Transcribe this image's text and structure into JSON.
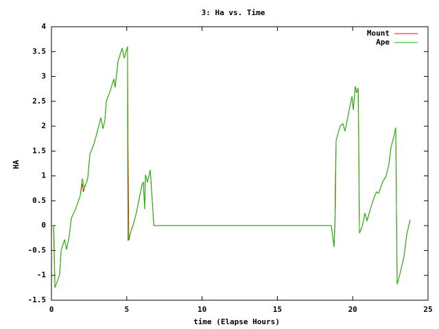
{
  "chart_data": {
    "type": "line",
    "title": "3: Ha vs. Time",
    "x_label": "time (Elapse Hours)",
    "y_label": "HA",
    "xlim": [
      0,
      25
    ],
    "xticks": [
      0,
      5,
      10,
      15,
      20,
      25
    ],
    "ylim": [
      -1.5,
      4
    ],
    "yticks": [
      -1.5,
      -1,
      -0.5,
      0,
      0.5,
      1,
      1.5,
      2,
      2.5,
      3,
      3.5,
      4
    ],
    "grid": false,
    "legend": "top-right",
    "series": [
      {
        "name": "Mount",
        "color": "#ff0000",
        "x": [
          0,
          0.14,
          0.23,
          0.55,
          0.64,
          0.87,
          1.0,
          1.18,
          1.32,
          1.6,
          1.91,
          2.05,
          2.12,
          2.19,
          2.41,
          2.55,
          2.82,
          3.14,
          3.28,
          3.42,
          3.55,
          3.64,
          3.87,
          4.14,
          4.23,
          4.42,
          4.69,
          4.83,
          5.05,
          5.08,
          5.08,
          5.12,
          5.14,
          5.24,
          5.46,
          5.65,
          5.83,
          6.01,
          6.1,
          6.19,
          6.24,
          6.38,
          6.56,
          6.8,
          18.58,
          18.76,
          18.82,
          18.84,
          18.9,
          19.17,
          19.35,
          19.49,
          19.72,
          19.95,
          20.04,
          20.17,
          20.26,
          20.36,
          20.38,
          20.39,
          20.42,
          20.43,
          20.45,
          20.63,
          20.81,
          20.95,
          21.17,
          21.4,
          21.58,
          21.72,
          21.99,
          22.22,
          22.4,
          22.54,
          22.72,
          22.86,
          22.95,
          23.13,
          23.4,
          23.59,
          23.82
        ],
        "values": [
          0,
          0,
          -1.25,
          -0.98,
          -0.5,
          -0.28,
          -0.48,
          -0.22,
          0.15,
          0.33,
          0.6,
          0.85,
          0.68,
          0.75,
          0.95,
          1.43,
          1.64,
          2.0,
          2.17,
          1.95,
          2.12,
          2.5,
          2.68,
          2.95,
          2.78,
          3.3,
          3.57,
          3.37,
          3.6,
          2.1,
          1.65,
          0.38,
          -0.3,
          -0.15,
          0.05,
          0.27,
          0.55,
          0.82,
          0.88,
          0.33,
          1.02,
          0.88,
          1.12,
          0,
          0,
          -0.43,
          0,
          0.7,
          1.72,
          2.0,
          2.05,
          1.9,
          2.25,
          2.6,
          2.33,
          2.8,
          2.67,
          2.77,
          2.2,
          2.0,
          1.15,
          0.45,
          -0.15,
          -0.02,
          0.25,
          0.1,
          0.33,
          0.55,
          0.68,
          0.65,
          0.88,
          1.0,
          1.23,
          1.57,
          1.78,
          1.97,
          -1.18,
          -0.98,
          -0.63,
          -0.17,
          0.12
        ]
      },
      {
        "name": "Ape",
        "color": "#00c000",
        "x": [
          0,
          0.14,
          0.18,
          0.23,
          0.55,
          0.64,
          0.87,
          1.0,
          1.18,
          1.32,
          1.6,
          1.91,
          2.05,
          2.19,
          2.41,
          2.55,
          2.82,
          3.14,
          3.28,
          3.42,
          3.55,
          3.64,
          3.87,
          4.14,
          4.23,
          4.42,
          4.69,
          4.83,
          5.05,
          5.07,
          5.24,
          5.46,
          5.65,
          5.83,
          6.01,
          6.1,
          6.19,
          6.24,
          6.38,
          6.56,
          6.8,
          18.58,
          18.76,
          18.85,
          18.9,
          19.17,
          19.35,
          19.49,
          19.72,
          19.95,
          20.04,
          20.17,
          20.26,
          20.36,
          20.45,
          20.63,
          20.81,
          20.95,
          21.17,
          21.4,
          21.58,
          21.72,
          21.99,
          22.22,
          22.4,
          22.54,
          22.72,
          22.86,
          22.95,
          23.13,
          23.4,
          23.59,
          23.82
        ],
        "values": [
          0,
          0,
          -0.3,
          -1.25,
          -0.98,
          -0.5,
          -0.28,
          -0.48,
          -0.22,
          0.15,
          0.33,
          0.6,
          0.95,
          0.75,
          0.95,
          1.43,
          1.64,
          2.0,
          2.17,
          1.95,
          2.12,
          2.5,
          2.68,
          2.95,
          2.78,
          3.3,
          3.57,
          3.37,
          3.6,
          -0.3,
          -0.15,
          0.05,
          0.27,
          0.55,
          0.82,
          0.88,
          0.33,
          1.02,
          0.88,
          1.12,
          0,
          0,
          -0.43,
          0.4,
          1.72,
          2.0,
          2.05,
          1.9,
          2.25,
          2.6,
          2.33,
          2.8,
          2.67,
          2.77,
          -0.15,
          -0.02,
          0.25,
          0.1,
          0.33,
          0.55,
          0.68,
          0.65,
          0.88,
          1.0,
          1.23,
          1.57,
          1.78,
          1.97,
          -1.18,
          -0.98,
          -0.63,
          -0.17,
          0.12
        ]
      }
    ]
  }
}
